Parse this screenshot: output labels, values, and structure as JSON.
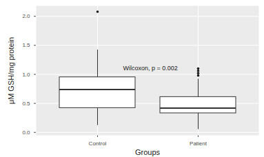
{
  "chart_data": {
    "type": "boxplot",
    "x_label": "Groups",
    "y_label": "μM GSH/mg protein",
    "categories": [
      "Control",
      "Patient"
    ],
    "boxes": [
      {
        "category": "Control",
        "min": 0.12,
        "q1": 0.42,
        "median": 0.74,
        "q3": 0.95,
        "max": 1.42,
        "outliers": [
          2.08
        ]
      },
      {
        "category": "Patient",
        "min": 0.05,
        "q1": 0.33,
        "median": 0.42,
        "q3": 0.61,
        "max": 0.92,
        "outliers": [
          0.98,
          1.02,
          1.06,
          1.1
        ]
      }
    ],
    "color": "#ffffff",
    "ylim": [
      -0.05,
      2.18
    ],
    "yticks": [
      {
        "value": 0,
        "label": "0.0"
      },
      {
        "value": 0.5,
        "label": "0.5"
      },
      {
        "value": 1,
        "label": "1.0"
      },
      {
        "value": 1.5,
        "label": "1.5"
      },
      {
        "value": 2,
        "label": "2.0"
      }
    ],
    "grid": true,
    "annotations": [
      {
        "text": "Wilcoxon, p = 0.002",
        "x": "Control",
        "y": 1.1
      }
    ]
  }
}
